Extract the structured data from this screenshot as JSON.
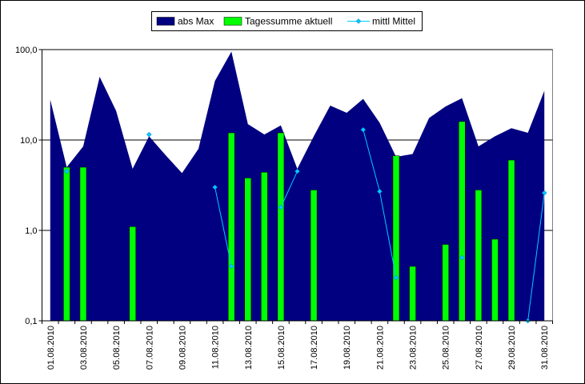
{
  "chart_data": {
    "type": "area",
    "title": "",
    "xlabel": "",
    "ylabel": "",
    "y_scale": "log",
    "ylim": [
      0.1,
      100
    ],
    "y_ticks": [
      "0,1",
      "1,0",
      "10,0",
      "100,0"
    ],
    "y_tick_values": [
      0.1,
      1,
      10,
      100
    ],
    "grid": "horizontal major gridlines",
    "legend_position": "top",
    "categories": [
      "01.08.2010",
      "02.08.2010",
      "03.08.2010",
      "04.08.2010",
      "05.08.2010",
      "06.08.2010",
      "07.08.2010",
      "08.08.2010",
      "09.08.2010",
      "10.08.2010",
      "11.08.2010",
      "12.08.2010",
      "13.08.2010",
      "14.08.2010",
      "15.08.2010",
      "16.08.2010",
      "17.08.2010",
      "18.08.2010",
      "19.08.2010",
      "20.08.2010",
      "21.08.2010",
      "22.08.2010",
      "23.08.2010",
      "24.08.2010",
      "25.08.2010",
      "26.08.2010",
      "27.08.2010",
      "28.08.2010",
      "29.08.2010",
      "30.08.2010",
      "31.08.2010"
    ],
    "x_tick_labels": [
      "01.08.2010",
      "03.08.2010",
      "05.08.2010",
      "07.08.2010",
      "09.08.2010",
      "11.08.2010",
      "13.08.2010",
      "15.08.2010",
      "17.08.2010",
      "19.08.2010",
      "21.08.2010",
      "23.08.2010",
      "25.08.2010",
      "27.08.2010",
      "29.08.2010",
      "31.08.2010"
    ],
    "series": [
      {
        "name": "abs Max",
        "kind": "area",
        "color": "#000080",
        "values": [
          28,
          5,
          8.5,
          50,
          21,
          4.8,
          11,
          6.8,
          4.3,
          8,
          45,
          95,
          15,
          11.5,
          14.5,
          4.8,
          11,
          24,
          20,
          28.5,
          15.5,
          6.5,
          7,
          17.5,
          23.5,
          29,
          8.5,
          11,
          13.5,
          12,
          35
        ]
      },
      {
        "name": "Tagessumme aktuell",
        "kind": "bar",
        "color": "#00ff00",
        "values": [
          null,
          5,
          5,
          null,
          null,
          1.1,
          null,
          null,
          null,
          null,
          null,
          12,
          3.8,
          4.4,
          12,
          null,
          2.8,
          null,
          null,
          null,
          null,
          6.7,
          0.4,
          null,
          0.7,
          16,
          2.8,
          0.8,
          6,
          null,
          null
        ]
      },
      {
        "name": "mittl Mittel",
        "kind": "line",
        "color": "#00ccff",
        "values": [
          null,
          4.5,
          null,
          null,
          null,
          null,
          11.5,
          null,
          null,
          null,
          3,
          0.4,
          null,
          null,
          1.8,
          4.5,
          null,
          null,
          null,
          13,
          2.7,
          0.3,
          null,
          null,
          null,
          0.5,
          null,
          null,
          null,
          0.1,
          2.6
        ]
      }
    ]
  }
}
